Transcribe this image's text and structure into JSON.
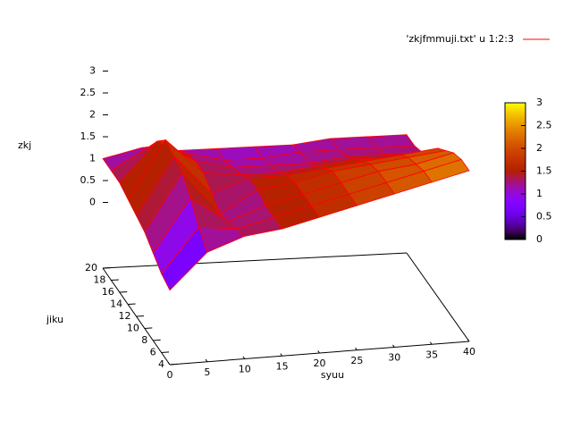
{
  "chart_data": {
    "type": "surface",
    "legend": "'zkjfmmuji.txt' u 1:2:3",
    "line_color": "#ff0000",
    "xlabel": "syuu",
    "ylabel": "jiku",
    "zlabel": "zkj",
    "x": [
      0,
      5,
      10,
      15,
      20,
      25,
      30,
      35,
      40
    ],
    "y": [
      4,
      6,
      8,
      10,
      12,
      14,
      16,
      18,
      20
    ],
    "z": [
      [
        0.2,
        1.0,
        1.3,
        1.4,
        1.6,
        1.8,
        2.0,
        2.2,
        2.4
      ],
      [
        0.3,
        1.3,
        1.2,
        1.4,
        1.6,
        1.8,
        2.0,
        2.2,
        2.4
      ],
      [
        0.5,
        1.7,
        1.1,
        1.4,
        1.6,
        1.8,
        2.0,
        2.1,
        2.3
      ],
      [
        0.7,
        2.0,
        1.0,
        1.5,
        1.6,
        1.8,
        1.9,
        2.0,
        2.1
      ],
      [
        0.8,
        2.1,
        1.2,
        1.5,
        1.5,
        1.6,
        1.7,
        1.8,
        1.9
      ],
      [
        0.9,
        2.2,
        1.4,
        1.3,
        1.3,
        1.4,
        1.5,
        1.5,
        1.5
      ],
      [
        1.0,
        1.9,
        1.4,
        1.2,
        1.2,
        1.2,
        1.3,
        1.3,
        1.3
      ],
      [
        1.0,
        1.5,
        1.3,
        1.1,
        1.1,
        1.2,
        1.2,
        1.2,
        1.2
      ],
      [
        1.0,
        1.2,
        1.1,
        1.1,
        1.1,
        1.1,
        1.2,
        1.2,
        1.2
      ]
    ],
    "xlim": [
      0,
      40
    ],
    "xticks": [
      0,
      5,
      10,
      15,
      20,
      25,
      30,
      35,
      40
    ],
    "ylim": [
      4,
      20
    ],
    "yticks": [
      4,
      6,
      8,
      10,
      12,
      14,
      16,
      18,
      20
    ],
    "zlim": [
      0,
      3
    ],
    "zticks": [
      0,
      0.5,
      1,
      1.5,
      2,
      2.5,
      3
    ],
    "cblim": [
      0,
      3
    ],
    "cbticks": [
      0,
      0.5,
      1,
      1.5,
      2,
      2.5,
      3
    ]
  }
}
